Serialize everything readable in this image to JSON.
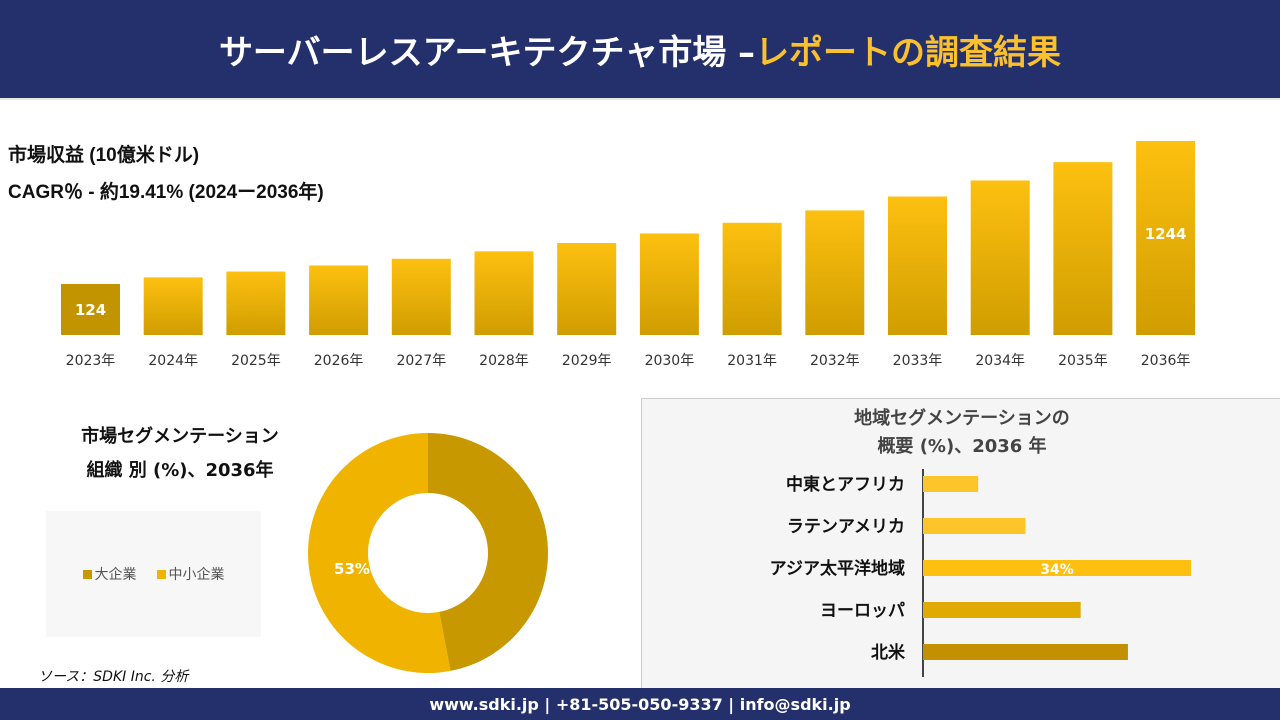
{
  "header": {
    "title_main": "サーバーレスアーキテクチャ市場 –",
    "title_highlight": "レポートの調査結果"
  },
  "revenue": {
    "label": "市場収益 (10億米ドル)",
    "cagr": "CAGR％ - 約19.41% (2024ー2036年)"
  },
  "colors": {
    "navy": "#24306b",
    "gold_dark": "#c29400",
    "gold": "#e0aa00",
    "gold_light": "#fdc010"
  },
  "chart_data": [
    {
      "type": "bar",
      "categories": [
        "2023年",
        "2024年",
        "2025年",
        "2026年",
        "2027年",
        "2028年",
        "2029年",
        "2030年",
        "2031年",
        "2032年",
        "2033年",
        "2034年",
        "2035年",
        "2036年"
      ],
      "values": [
        124,
        148,
        177,
        211,
        252,
        301,
        359,
        429,
        512,
        612,
        730,
        872,
        1041,
        1244
      ],
      "data_labels": {
        "0": "124",
        "13": "1244"
      }
    },
    {
      "type": "pie",
      "title": "市場セグメンテーション 組織 別 (%)、2036年",
      "categories": [
        "大企業",
        "中小企業"
      ],
      "values": [
        47,
        53
      ],
      "colors": [
        "#c79800",
        "#f0b400"
      ],
      "data_labels": {
        "1": "53%"
      },
      "legend": "left"
    },
    {
      "type": "bar",
      "orientation": "horizontal",
      "title": "地域セグメンテーションの 概要 (%)、2036 年",
      "categories": [
        "中東とアフリカ",
        "ラテンアメリカ",
        "アジア太平洋地域",
        "ヨーロッパ",
        "北米"
      ],
      "values": [
        7,
        13,
        34,
        20,
        26
      ],
      "colors": [
        "#fdc52a",
        "#fdc52a",
        "#fdc010",
        "#e0aa00",
        "#c29000"
      ],
      "data_labels": {
        "2": "34%"
      }
    }
  ],
  "segment": {
    "title_line1": "市場セグメンテーション",
    "title_line2": "組織 別 (%)、2036年"
  },
  "region": {
    "title_line1": "地域セグメンテーションの",
    "title_line2": "概要 (%)、2036 年"
  },
  "source": "ソース：SDKI Inc. 分析",
  "footer": "www.sdki.jp | +81-505-050-9337 | info@sdki.jp"
}
